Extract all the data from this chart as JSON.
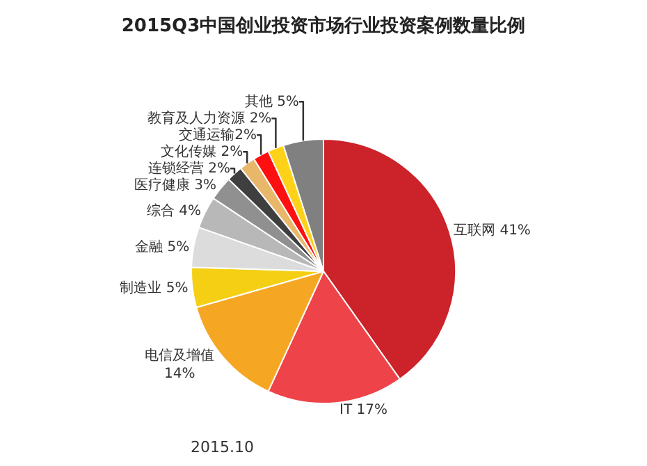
{
  "chart_data": {
    "type": "pie",
    "title": "2015Q3中国创业投资市场行业投资案例数量比例",
    "categories": [
      "互联网",
      "IT",
      "电信及增值",
      "制造业",
      "金融",
      "综合",
      "医疗健康",
      "连锁经营",
      "文化传媒",
      "交通运输",
      "教育及人力资源",
      "其他"
    ],
    "values": [
      41,
      17,
      14,
      5,
      5,
      4,
      3,
      2,
      2,
      2,
      2,
      5
    ],
    "value_labels": [
      " 41%",
      " 17%",
      "\n14%",
      " 5%",
      " 5%",
      " 4%",
      " 3%",
      " 2%",
      " 2%",
      "2%",
      " 2%",
      " 5%"
    ],
    "colors": [
      "#cc2229",
      "#ee4349",
      "#f5a623",
      "#f5cf14",
      "#dcdcdc",
      "#b8b8b8",
      "#909090",
      "#3f3f3f",
      "#e8b76a",
      "#ff1010",
      "#ffd21a",
      "#808080"
    ],
    "legend": false,
    "annotations": [
      "2015.10"
    ]
  }
}
